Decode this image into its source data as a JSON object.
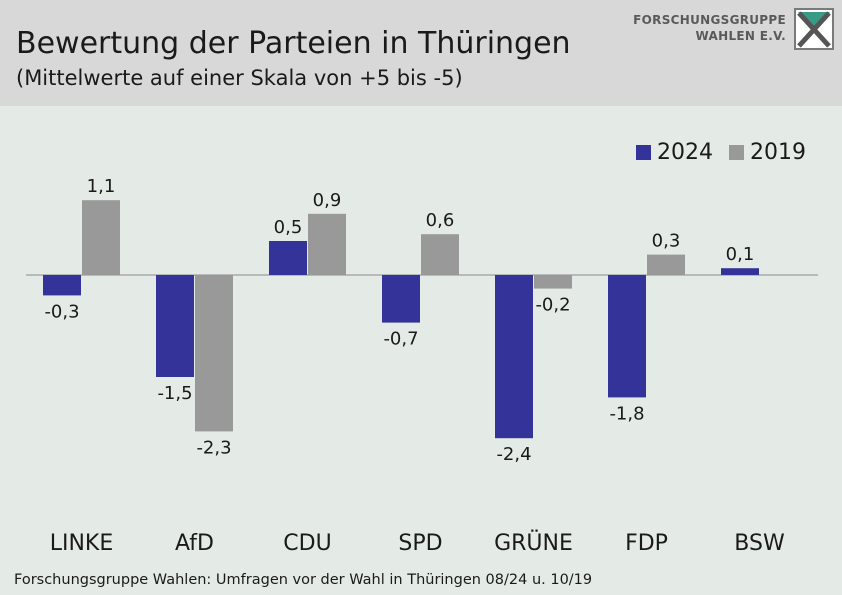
{
  "header": {
    "title": "Bewertung der Parteien in Thüringen",
    "subtitle": "(Mittelwerte auf einer Skala von +5 bis -5)"
  },
  "logo": {
    "line1": "FORSCHUNGSGRUPPE",
    "line2": "WAHLEN E.V."
  },
  "footer": {
    "source": "Forschungsgruppe Wahlen: Umfragen vor der Wahl in Thüringen 08/24 u. 10/19"
  },
  "colors": {
    "series_2024": "#333399",
    "series_2019": "#999999",
    "background": "#e4ebe6",
    "header_bg": "#d8d8d8"
  },
  "chart_data": {
    "type": "bar",
    "title": "Bewertung der Parteien in Thüringen",
    "subtitle": "(Mittelwerte auf einer Skala von +5 bis -5)",
    "categories": [
      "LINKE",
      "AfD",
      "CDU",
      "SPD",
      "GRÜNE",
      "FDP",
      "BSW"
    ],
    "series": [
      {
        "name": "2024",
        "color": "#333399",
        "values": [
          -0.3,
          -1.5,
          0.5,
          -0.7,
          -2.4,
          -1.8,
          0.1
        ],
        "labels": [
          "-0,3",
          "-1,5",
          "0,5",
          "-0,7",
          "-2,4",
          "-1,8",
          "0,1"
        ]
      },
      {
        "name": "2019",
        "color": "#999999",
        "values": [
          1.1,
          -2.3,
          0.9,
          0.6,
          -0.2,
          0.3,
          null
        ],
        "labels": [
          "1,1",
          "-2,3",
          "0,9",
          "0,6",
          "-0,2",
          "0,3",
          null
        ]
      }
    ],
    "ylim": [
      -2.8,
      1.6
    ],
    "grid": false,
    "legend_position": "top-right"
  }
}
